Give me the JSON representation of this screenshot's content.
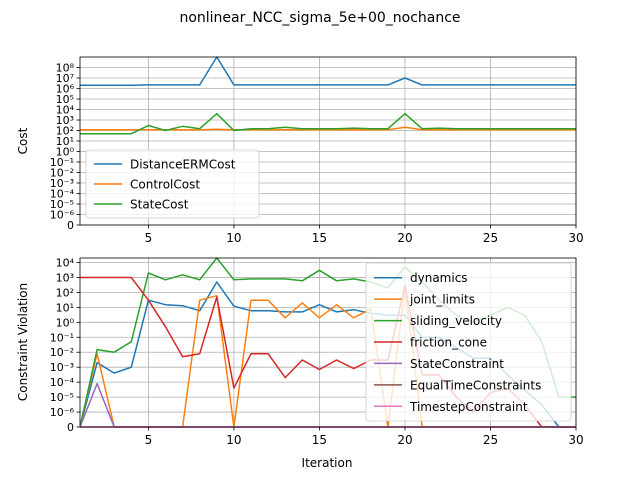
{
  "figure": {
    "suptitle": "nonlinear_NCC_sigma_5e+00_nochance"
  },
  "colors": {
    "c0": "#1f77b4",
    "c1": "#ff7f0e",
    "c2": "#2ca02c",
    "c3": "#d62728",
    "c4": "#9467bd",
    "c5": "#8c564b",
    "c6": "#e377c2",
    "grid": "#b0b0b0"
  },
  "chart_data": [
    {
      "type": "line",
      "ylabel": "Cost",
      "xlabel": "",
      "xlim": [
        1,
        30
      ],
      "xticks": [
        5,
        10,
        15,
        20,
        25,
        30
      ],
      "yscale": "symlog",
      "linthresh": 1e-06,
      "ylim": [
        0,
        1000000000.0
      ],
      "yticks": [
        {
          "v": 0,
          "label": "0"
        },
        {
          "v": 1e-06,
          "label": "10⁻⁶"
        },
        {
          "v": 1e-05,
          "label": "10⁻⁵"
        },
        {
          "v": 0.0001,
          "label": "10⁻⁴"
        },
        {
          "v": 0.001,
          "label": "10⁻³"
        },
        {
          "v": 0.01,
          "label": "10⁻²"
        },
        {
          "v": 0.1,
          "label": "10⁻¹"
        },
        {
          "v": 1.0,
          "label": "10⁰"
        },
        {
          "v": 10.0,
          "label": "10¹"
        },
        {
          "v": 100.0,
          "label": "10²"
        },
        {
          "v": 1000.0,
          "label": "10³"
        },
        {
          "v": 10000.0,
          "label": "10⁴"
        },
        {
          "v": 100000.0,
          "label": "10⁵"
        },
        {
          "v": 1000000.0,
          "label": "10⁶"
        },
        {
          "v": 10000000.0,
          "label": "10⁷"
        },
        {
          "v": 100000000.0,
          "label": "10⁸"
        }
      ],
      "grid": true,
      "legend_loc": "lower left",
      "x": [
        1,
        2,
        3,
        4,
        5,
        6,
        7,
        8,
        9,
        10,
        11,
        12,
        13,
        14,
        15,
        16,
        17,
        18,
        19,
        20,
        21,
        22,
        23,
        24,
        25,
        26,
        27,
        28,
        29,
        30
      ],
      "series": [
        {
          "name": "DistanceERMCost",
          "color_key": "c0",
          "values": [
            2000000.0,
            2000000.0,
            2000000.0,
            2000000.0,
            2200000.0,
            2200000.0,
            2200000.0,
            2200000.0,
            1000000000.0,
            2200000.0,
            2200000.0,
            2200000.0,
            2200000.0,
            2200000.0,
            2200000.0,
            2200000.0,
            2200000.0,
            2200000.0,
            2200000.0,
            10000000.0,
            2200000.0,
            2200000.0,
            2200000.0,
            2200000.0,
            2200000.0,
            2200000.0,
            2200000.0,
            2200000.0,
            2200000.0,
            2200000.0
          ]
        },
        {
          "name": "ControlCost",
          "color_key": "c1",
          "values": [
            120,
            120,
            120,
            120,
            120,
            120,
            120,
            120,
            130,
            120,
            120,
            120,
            120,
            120,
            120,
            120,
            120,
            120,
            120,
            200,
            120,
            120,
            120,
            120,
            120,
            120,
            120,
            120,
            120,
            120
          ]
        },
        {
          "name": "StateCost",
          "color_key": "c2",
          "values": [
            50,
            50,
            50,
            50,
            300,
            100,
            250,
            150,
            4000,
            100,
            150,
            150,
            200,
            150,
            150,
            150,
            170,
            150,
            150,
            4000,
            150,
            170,
            150,
            150,
            150,
            150,
            150,
            150,
            150,
            150
          ]
        }
      ]
    },
    {
      "type": "line",
      "ylabel": "Constraint Violation",
      "xlabel": "Iteration",
      "xlim": [
        1,
        30
      ],
      "xticks": [
        5,
        10,
        15,
        20,
        25,
        30
      ],
      "yscale": "symlog",
      "linthresh": 1e-06,
      "ylim": [
        0,
        20000.0
      ],
      "yticks": [
        {
          "v": 0,
          "label": "0"
        },
        {
          "v": 1e-06,
          "label": "10⁻⁶"
        },
        {
          "v": 1e-05,
          "label": "10⁻⁵"
        },
        {
          "v": 0.0001,
          "label": "10⁻⁴"
        },
        {
          "v": 0.001,
          "label": "10⁻³"
        },
        {
          "v": 0.01,
          "label": "10⁻²"
        },
        {
          "v": 0.1,
          "label": "10⁻¹"
        },
        {
          "v": 1.0,
          "label": "10⁰"
        },
        {
          "v": 10.0,
          "label": "10¹"
        },
        {
          "v": 100.0,
          "label": "10²"
        },
        {
          "v": 1000.0,
          "label": "10³"
        },
        {
          "v": 10000.0,
          "label": "10⁴"
        }
      ],
      "grid": true,
      "legend_loc": "upper right",
      "x": [
        1,
        2,
        3,
        4,
        5,
        6,
        7,
        8,
        9,
        10,
        11,
        12,
        13,
        14,
        15,
        16,
        17,
        18,
        19,
        20,
        21,
        22,
        23,
        24,
        25,
        26,
        27,
        28,
        29,
        30
      ],
      "series": [
        {
          "name": "dynamics",
          "color_key": "c0",
          "values": [
            0,
            0.002,
            0.0004,
            0.001,
            30,
            15,
            13,
            6,
            500,
            12,
            6,
            6,
            5,
            5,
            15,
            5,
            7,
            4,
            3,
            3,
            0.1,
            0.1,
            0.02,
            0.004,
            0.004,
            0.0003,
            3e-05,
            3e-06,
            0,
            0
          ]
        },
        {
          "name": "joint_limits",
          "color_key": "c1",
          "values": [
            0,
            0.008,
            0,
            0,
            0,
            0,
            0,
            30,
            60,
            0,
            30,
            30,
            2,
            20,
            2,
            15,
            2,
            8,
            0,
            200,
            0,
            0,
            0,
            0,
            0,
            0,
            0,
            0,
            0,
            0
          ]
        },
        {
          "name": "sliding_velocity",
          "color_key": "c2",
          "values": [
            0,
            0.015,
            0.01,
            0.05,
            2000,
            700,
            1500,
            700,
            20000,
            700,
            800,
            800,
            800,
            600,
            3000,
            600,
            800,
            500,
            200,
            5000,
            500,
            30,
            3,
            1,
            3,
            10,
            3,
            0.05,
            1e-05,
            1e-05
          ]
        },
        {
          "name": "friction_cone",
          "color_key": "c3",
          "values": [
            1000,
            1000,
            1000,
            1000,
            30,
            0.5,
            0.005,
            0.008,
            50,
            4e-05,
            0.008,
            0.008,
            0.0002,
            0.003,
            0.0007,
            0.003,
            0.0008,
            0.003,
            0.003,
            300,
            0.0003,
            0.0003,
            1e-05,
            1e-06,
            2e-05,
            4e-05,
            3e-06,
            0,
            0,
            0
          ]
        },
        {
          "name": "StateConstraint",
          "color_key": "c4",
          "values": [
            0,
            8e-05,
            0,
            0,
            0,
            0,
            0,
            0,
            0,
            0,
            0,
            0,
            0,
            0,
            0,
            0,
            0,
            0,
            0,
            0,
            0,
            0,
            0,
            0,
            0,
            0,
            0,
            0,
            0,
            0
          ]
        },
        {
          "name": "EqualTimeConstraints",
          "color_key": "c5",
          "values": [
            0,
            0,
            0,
            0,
            0,
            0,
            0,
            0,
            0,
            0,
            0,
            0,
            0,
            0,
            0,
            0,
            0,
            0,
            0,
            0,
            0,
            0,
            0,
            0,
            0,
            0,
            0,
            0,
            0,
            0
          ]
        },
        {
          "name": "TimestepConstraint",
          "color_key": "c6",
          "values": [
            0,
            0,
            0,
            0,
            0,
            0,
            0,
            0,
            0,
            0,
            0,
            0,
            0,
            0,
            0,
            0,
            0,
            0,
            0,
            0,
            0,
            0,
            0,
            0,
            0,
            0,
            0,
            0,
            0,
            0
          ]
        }
      ]
    }
  ]
}
